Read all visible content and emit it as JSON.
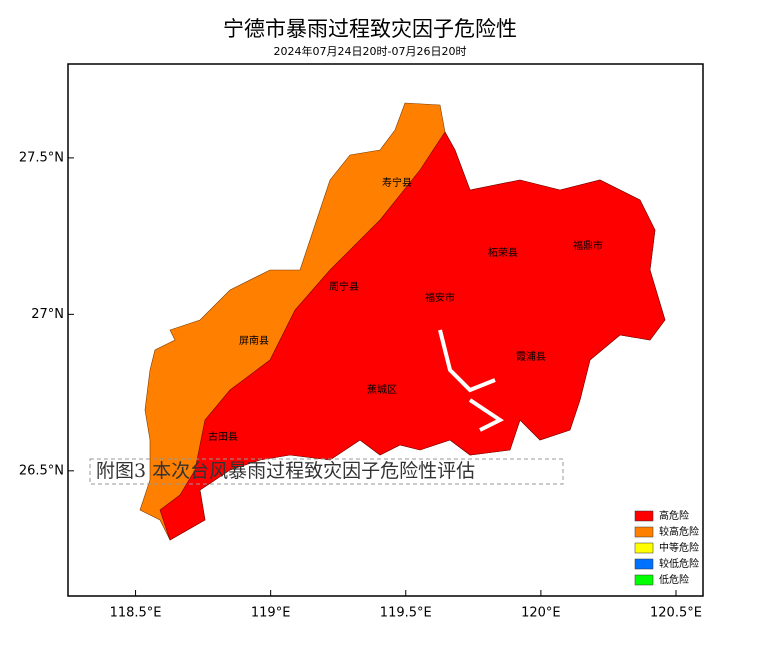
{
  "header": {
    "title": "宁德市暴雨过程致灾因子危险性",
    "subtitle": "2024年07月24日20时-07月26日20时"
  },
  "map": {
    "xlim": [
      118.25,
      120.6
    ],
    "ylim": [
      26.1,
      27.8
    ],
    "xticks": [
      {
        "value": 118.5,
        "label": "118.5°E"
      },
      {
        "value": 119,
        "label": "119°E"
      },
      {
        "value": 119.5,
        "label": "119.5°E"
      },
      {
        "value": 120,
        "label": "120°E"
      },
      {
        "value": 120.5,
        "label": "120.5°E"
      }
    ],
    "yticks": [
      {
        "value": 26.5,
        "label": "26.5°N"
      },
      {
        "value": 27,
        "label": "27°N"
      },
      {
        "value": 27.5,
        "label": "27.5°N"
      }
    ],
    "counties": [
      "寿宁县",
      "柘荣县",
      "福鼎市",
      "周宁县",
      "福安市",
      "屏南县",
      "霞浦县",
      "蕉城区",
      "古田县"
    ],
    "legend": [
      {
        "label": "高危险",
        "color": "#ff0000"
      },
      {
        "label": "较高危险",
        "color": "#ff7f00"
      },
      {
        "label": "中等危险",
        "color": "#ffff00"
      },
      {
        "label": "较低危险",
        "color": "#0070ff"
      },
      {
        "label": "低危险",
        "color": "#00ff00"
      }
    ]
  },
  "caption": "附图3 本次台风暴雨过程致灾因子危险性评估"
}
